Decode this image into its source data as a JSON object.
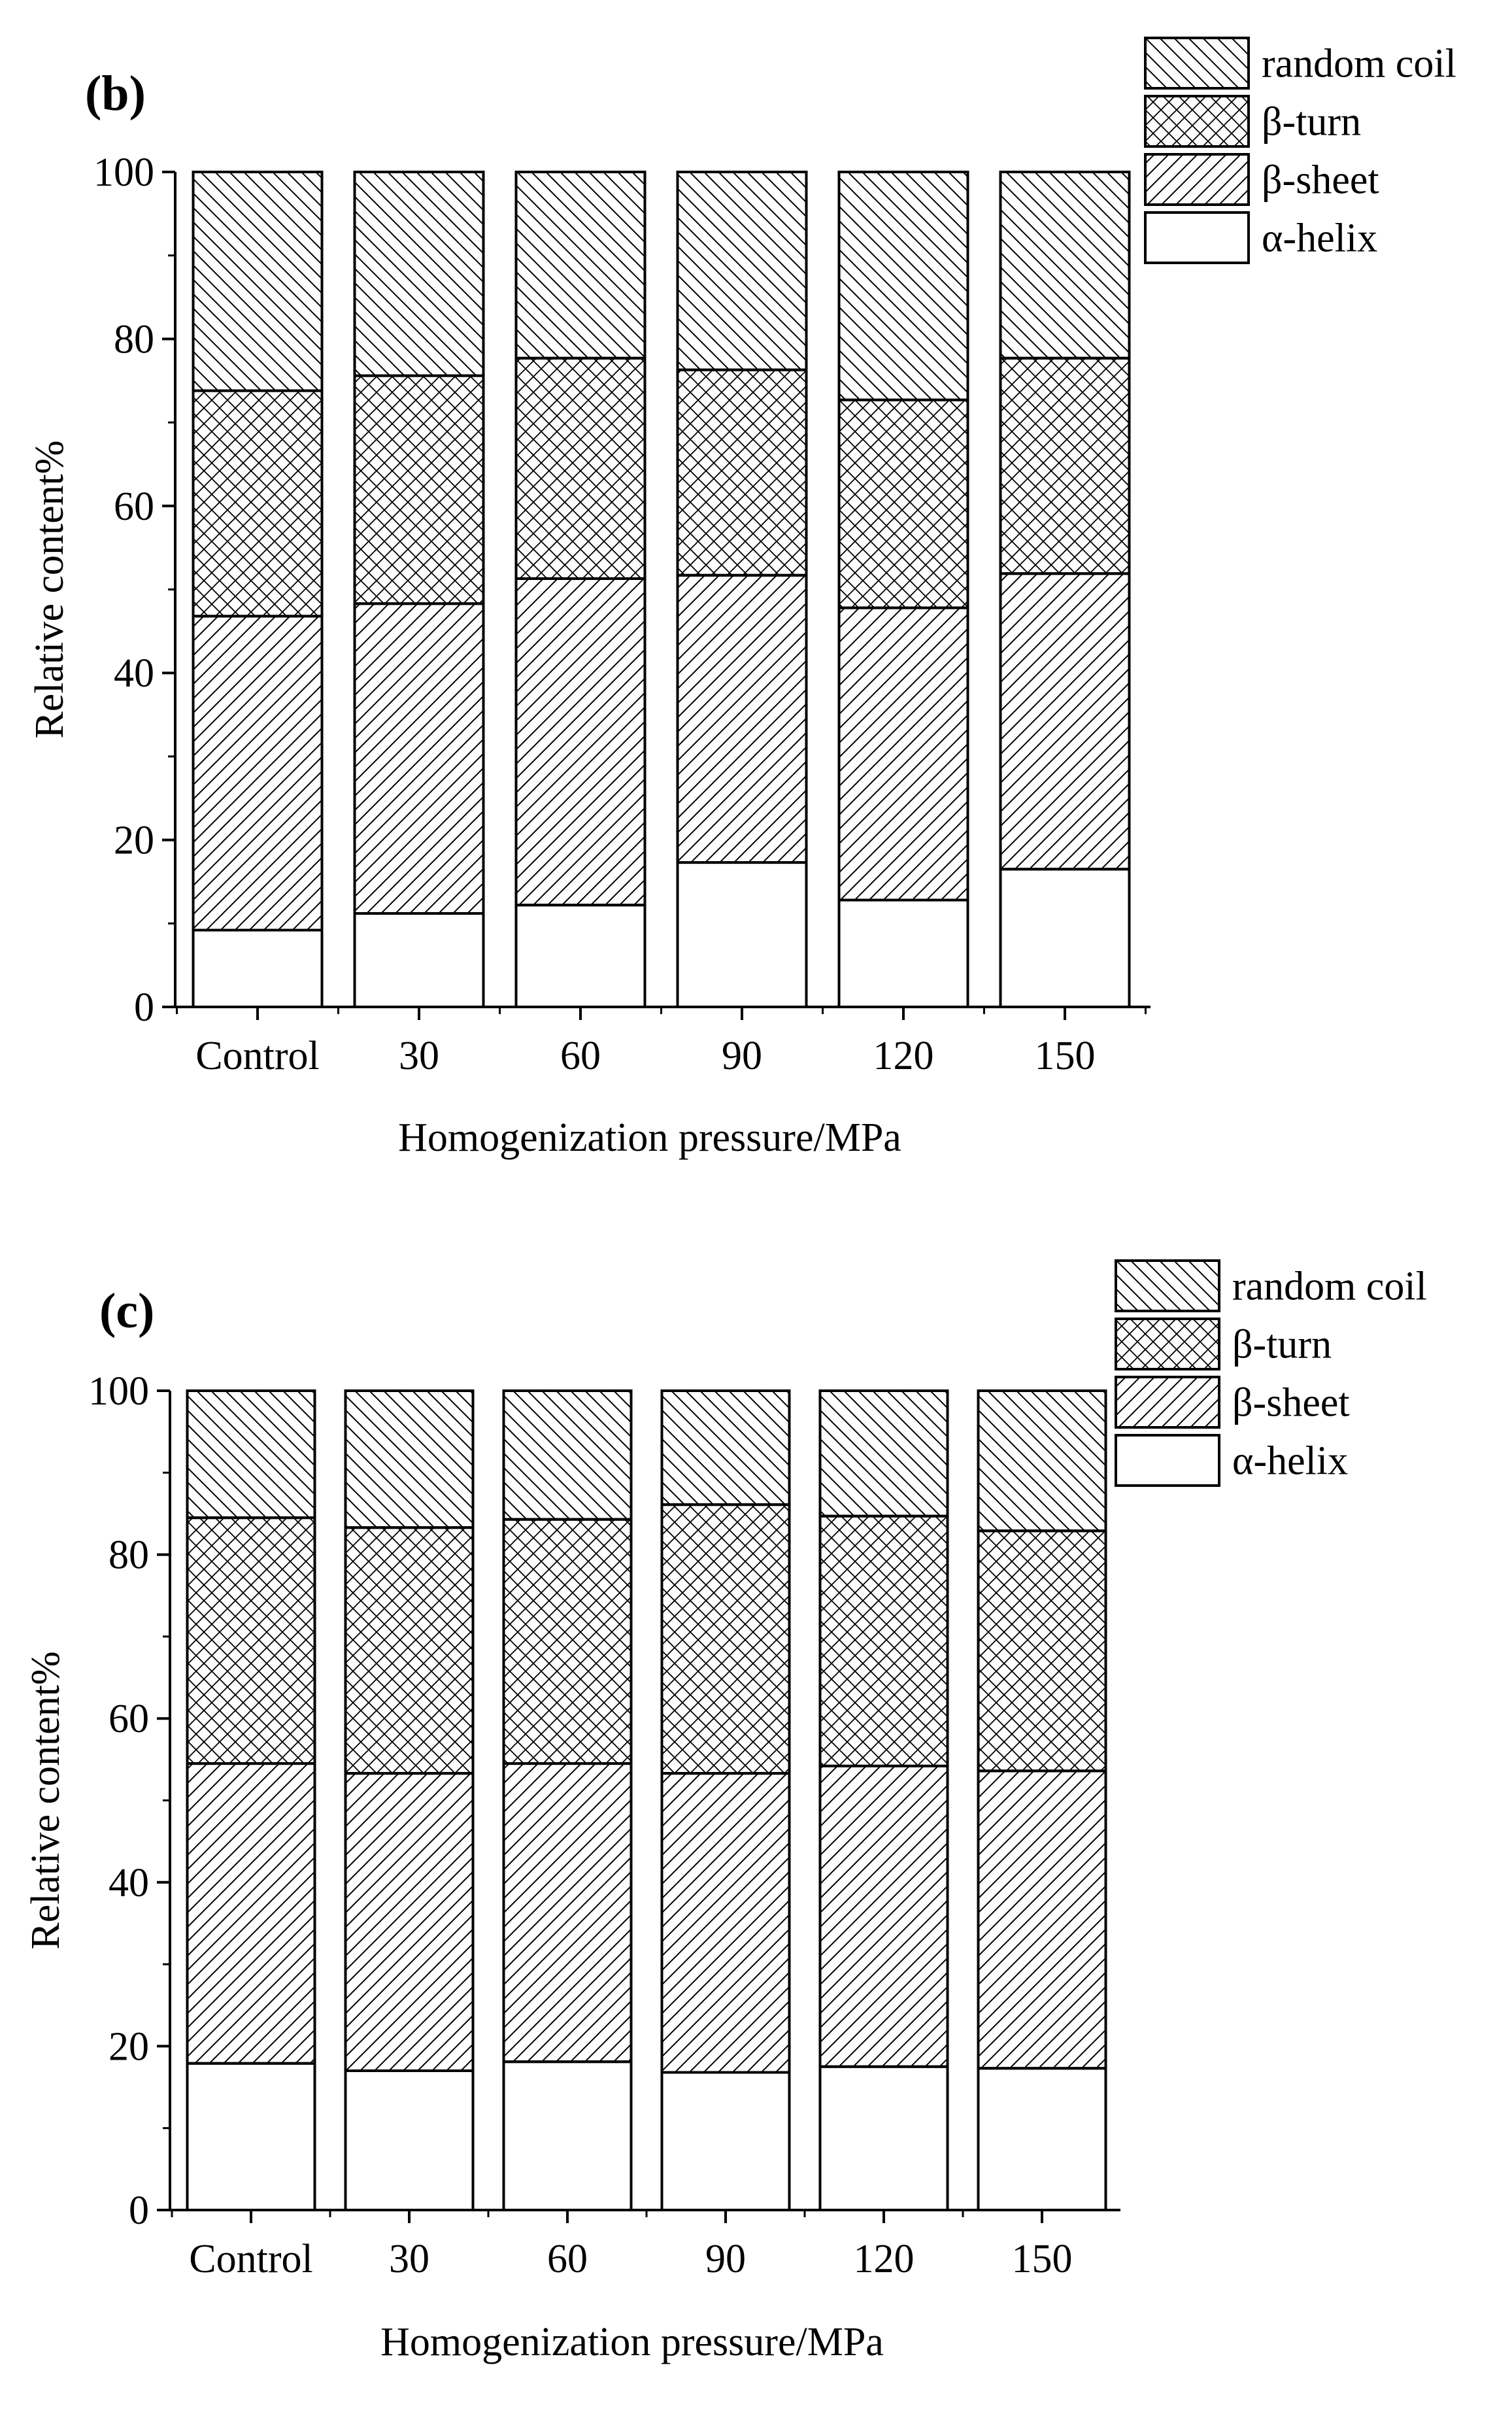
{
  "chart_data": [
    {
      "type": "bar",
      "stacked": true,
      "panel_label": "(b)",
      "categories": [
        "Control",
        "30",
        "60",
        "90",
        "120",
        "150"
      ],
      "series": [
        {
          "name": "α-helix",
          "pattern": "none",
          "values": [
            9.2,
            11.2,
            12.2,
            17.3,
            12.8,
            16.5
          ]
        },
        {
          "name": "β-sheet",
          "pattern": "forward-diagonal",
          "values": [
            37.6,
            37.1,
            39.1,
            34.4,
            35.0,
            35.4
          ]
        },
        {
          "name": "β-turn",
          "pattern": "crosshatch",
          "values": [
            27.0,
            27.3,
            26.4,
            24.6,
            24.9,
            25.8
          ]
        },
        {
          "name": "random coil",
          "pattern": "back-diagonal",
          "values": [
            26.2,
            24.4,
            22.3,
            23.7,
            27.3,
            22.3
          ]
        }
      ],
      "xlabel": "Homogenization pressure/MPa",
      "ylabel": "Relative content%",
      "ylim": [
        0,
        100
      ],
      "yticks": [
        0,
        20,
        40,
        60,
        80,
        100
      ],
      "legend_position": "top-right",
      "grid": false
    },
    {
      "type": "bar",
      "stacked": true,
      "panel_label": "(c)",
      "categories": [
        "Control",
        "30",
        "60",
        "90",
        "120",
        "150"
      ],
      "series": [
        {
          "name": "α-helix",
          "pattern": "none",
          "values": [
            17.9,
            17.0,
            18.1,
            16.8,
            17.5,
            17.3
          ]
        },
        {
          "name": "β-sheet",
          "pattern": "forward-diagonal",
          "values": [
            36.6,
            36.3,
            36.4,
            36.5,
            36.7,
            36.3
          ]
        },
        {
          "name": "β-turn",
          "pattern": "crosshatch",
          "values": [
            30.0,
            30.0,
            29.8,
            32.8,
            30.5,
            29.3
          ]
        },
        {
          "name": "random coil",
          "pattern": "back-diagonal",
          "values": [
            15.5,
            16.7,
            15.7,
            13.9,
            15.3,
            17.1
          ]
        }
      ],
      "xlabel": "Homogenization pressure/MPa",
      "ylabel": "Relative content%",
      "ylim": [
        0,
        100
      ],
      "yticks": [
        0,
        20,
        40,
        60,
        80,
        100
      ],
      "legend_position": "top-right",
      "grid": false
    }
  ]
}
